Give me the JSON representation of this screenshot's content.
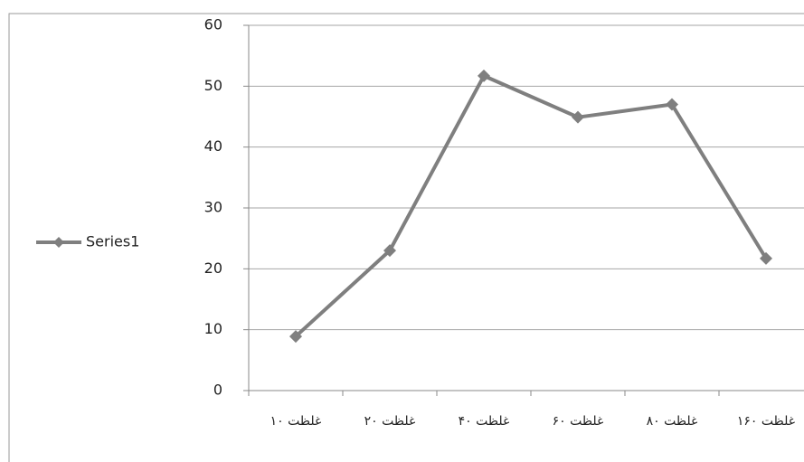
{
  "chart_data": {
    "type": "line",
    "categories": [
      "غلظت ۱۰",
      "غلظت ۲۰",
      "غلظت ۴۰",
      "غلظت ۶۰",
      "غلظت ۸۰",
      "غلظت ۱۶۰"
    ],
    "series": [
      {
        "name": "Series1",
        "color": "#7f7f7f",
        "values": [
          8.9,
          23,
          51.7,
          44.9,
          47,
          21.7
        ]
      }
    ],
    "ylim": [
      0,
      60
    ],
    "yticks": [
      0,
      10,
      20,
      30,
      40,
      50,
      60
    ],
    "grid": true,
    "legend": "left"
  }
}
